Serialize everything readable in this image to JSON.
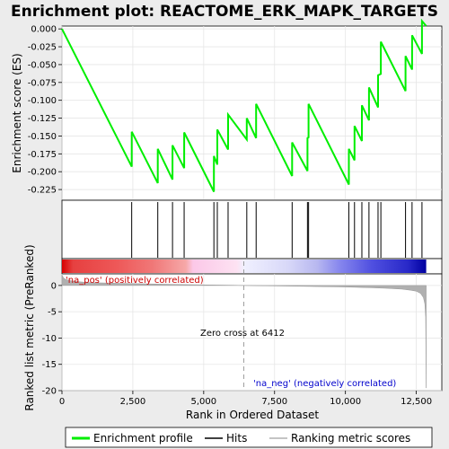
{
  "chart_data": {
    "type": "line",
    "title": "Enrichment plot: REACTOME_ERK_MAPK_TARGETS",
    "xlabel": "Rank in Ordered Dataset",
    "xlim": [
      0,
      13400
    ],
    "xticks": [
      0,
      2500,
      5000,
      7500,
      10000,
      12500
    ],
    "xtick_labels": [
      "0",
      "2,500",
      "5,000",
      "7,500",
      "10,000",
      "12,500"
    ],
    "es_panel": {
      "ylabel": "Enrichment score (ES)",
      "ylim": [
        -0.24,
        0.004
      ],
      "yticks": [
        0.0,
        -0.025,
        -0.05,
        -0.075,
        -0.1,
        -0.125,
        -0.15,
        -0.175,
        -0.2,
        -0.225
      ],
      "ytick_labels": [
        "0.000",
        "-0.025",
        "-0.050",
        "-0.075",
        "-0.100",
        "-0.125",
        "-0.150",
        "-0.175",
        "-0.200",
        "-0.225"
      ],
      "series": [
        {
          "name": "Enrichment profile",
          "color": "#00ee00",
          "x": [
            0,
            2460,
            2460,
            3380,
            3380,
            3900,
            3900,
            4310,
            4310,
            5360,
            5360,
            5480,
            5480,
            5860,
            5860,
            6520,
            6520,
            6850,
            6850,
            8120,
            8120,
            8660,
            8660,
            8700,
            8700,
            10120,
            10120,
            10320,
            10320,
            10580,
            10580,
            10830,
            10830,
            11150,
            11150,
            11250,
            11250,
            12120,
            12120,
            12350,
            12350,
            12700,
            12700,
            12850
          ],
          "y": [
            0.0,
            -0.193,
            -0.144,
            -0.216,
            -0.168,
            -0.211,
            -0.163,
            -0.195,
            -0.145,
            -0.228,
            -0.178,
            -0.19,
            -0.141,
            -0.169,
            -0.12,
            -0.155,
            -0.125,
            -0.153,
            -0.105,
            -0.206,
            -0.159,
            -0.199,
            -0.153,
            -0.152,
            -0.105,
            -0.218,
            -0.168,
            -0.184,
            -0.136,
            -0.157,
            -0.107,
            -0.128,
            -0.082,
            -0.11,
            -0.065,
            -0.063,
            -0.018,
            -0.087,
            -0.038,
            -0.057,
            -0.009,
            -0.035,
            0.011,
            0.004
          ]
        }
      ]
    },
    "hits_panel": {
      "name": "Hits",
      "color": "#000000",
      "positions": [
        2460,
        3380,
        3900,
        4310,
        5360,
        5480,
        5860,
        6520,
        6850,
        8120,
        8660,
        8700,
        10120,
        10320,
        10580,
        10830,
        11150,
        11250,
        12120,
        12350,
        12700
      ]
    },
    "rank_panel": {
      "ylabel": "Ranked list metric (PreRanked)",
      "ylim": [
        -20,
        2.2
      ],
      "yticks": [
        0,
        -5,
        -10,
        -15,
        -20
      ],
      "ytick_labels": [
        "0",
        "-5",
        "-10",
        "-15",
        "-20"
      ],
      "series_name": "Ranking metric scores",
      "color": "#b0b0b0",
      "curve_x": [
        0,
        60,
        150,
        300,
        600,
        1000,
        2000,
        3000,
        4000,
        5000,
        6000,
        6412,
        7000,
        8000,
        9000,
        10000,
        11000,
        11500,
        12000,
        12300,
        12500,
        12650,
        12750,
        12800,
        12830,
        12850
      ],
      "curve_y": [
        2.0,
        1.4,
        1.1,
        0.9,
        0.7,
        0.55,
        0.4,
        0.3,
        0.2,
        0.12,
        0.05,
        0.0,
        -0.05,
        -0.12,
        -0.2,
        -0.3,
        -0.45,
        -0.55,
        -0.7,
        -0.9,
        -1.1,
        -1.5,
        -2.3,
        -3.5,
        -6.0,
        -19.5
      ],
      "zero_cross": 6412,
      "zero_cross_label": "Zero cross at 6412",
      "pos_label": "'na_pos' (positively correlated)",
      "neg_label": "'na_neg' (negatively correlated)",
      "pos_label_color": "#cc0000",
      "neg_label_color": "#0000cc"
    },
    "heat_bar": {
      "stops": [
        {
          "offset": 0.0,
          "color": "#d80000"
        },
        {
          "offset": 0.03,
          "color": "#e64040"
        },
        {
          "offset": 0.15,
          "color": "#ee5858"
        },
        {
          "offset": 0.25,
          "color": "#f07878"
        },
        {
          "offset": 0.34,
          "color": "#f6a8a8"
        },
        {
          "offset": 0.36,
          "color": "#fcc8e8"
        },
        {
          "offset": 0.48,
          "color": "#fde2f2"
        },
        {
          "offset": 0.5,
          "color": "#f0f0ff"
        },
        {
          "offset": 0.62,
          "color": "#d8d8f8"
        },
        {
          "offset": 0.7,
          "color": "#b8b8f0"
        },
        {
          "offset": 0.76,
          "color": "#8888ee"
        },
        {
          "offset": 0.85,
          "color": "#5050e0"
        },
        {
          "offset": 0.95,
          "color": "#2828c8"
        },
        {
          "offset": 1.0,
          "color": "#0000a0"
        }
      ]
    },
    "legend": {
      "position": "bottom",
      "entries": [
        {
          "label": "Enrichment profile",
          "color": "#00ee00"
        },
        {
          "label": "Hits",
          "color": "#000000"
        },
        {
          "label": "Ranking metric scores",
          "color": "#b0b0b0"
        }
      ]
    }
  }
}
